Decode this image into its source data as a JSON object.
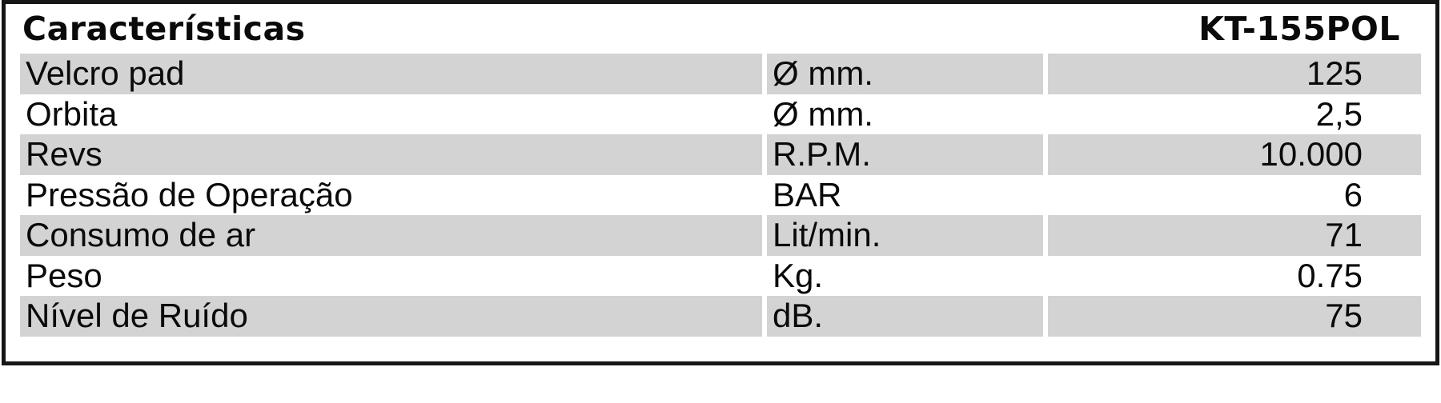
{
  "table": {
    "title": "Características",
    "model": "KT-155POL",
    "columns": [
      "name",
      "unit",
      "value"
    ],
    "rows": [
      {
        "name": "Velcro pad",
        "unit": "Ø mm.",
        "value": "125"
      },
      {
        "name": "Orbita",
        "unit": "Ø mm.",
        "value": "2,5"
      },
      {
        "name": "Revs",
        "unit": "R.P.M.",
        "value": "10.000"
      },
      {
        "name": "Pressão de Operação",
        "unit": "BAR",
        "value": "6"
      },
      {
        "name": "Consumo de ar",
        "unit": "Lit/min.",
        "value": "71"
      },
      {
        "name": "Peso",
        "unit": "Kg.",
        "value": "0.75"
      },
      {
        "name": "Nível de Ruído",
        "unit": "dB.",
        "value": "75"
      }
    ],
    "colors": {
      "row_stripe": "#d3d3d3",
      "border": "#161616",
      "background": "#ffffff",
      "text": "#0a0a0a"
    }
  }
}
